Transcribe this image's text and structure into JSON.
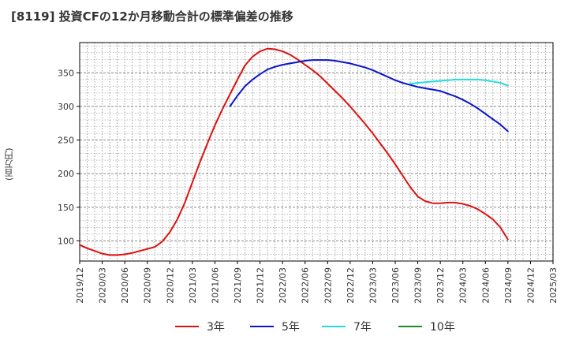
{
  "title": "[8119]  投資CFの12か月移動合計の標準偏差の推移",
  "y_unit_label": "(百万円)",
  "colors": {
    "3年": "#dd1111",
    "5年": "#0a14cc",
    "7年": "#22dddd",
    "10年": "#228822",
    "grid": "#888888",
    "axis": "#000000"
  },
  "chart_data": {
    "type": "line",
    "xlabel": "",
    "ylabel": "(百万円)",
    "ylim": [
      70,
      395
    ],
    "yticks": [
      100,
      150,
      200,
      250,
      300,
      350
    ],
    "x_range": [
      "2019-12",
      "2025-03"
    ],
    "x_ticks": [
      "2019/12",
      "2020/03",
      "2020/06",
      "2020/09",
      "2020/12",
      "2021/03",
      "2021/06",
      "2021/09",
      "2021/12",
      "2022/03",
      "2022/06",
      "2022/09",
      "2022/12",
      "2023/03",
      "2023/06",
      "2023/09",
      "2023/12",
      "2024/03",
      "2024/06",
      "2024/09",
      "2024/12",
      "2025/03"
    ],
    "grid": true,
    "legend_position": "bottom",
    "series": [
      {
        "name": "3年",
        "points": [
          [
            "2019-12",
            94
          ],
          [
            "2020-01",
            89
          ],
          [
            "2020-02",
            85
          ],
          [
            "2020-03",
            81
          ],
          [
            "2020-04",
            79
          ],
          [
            "2020-05",
            79
          ],
          [
            "2020-06",
            80
          ],
          [
            "2020-07",
            82
          ],
          [
            "2020-08",
            85
          ],
          [
            "2020-09",
            88
          ],
          [
            "2020-10",
            91
          ],
          [
            "2020-11",
            99
          ],
          [
            "2020-12",
            113
          ],
          [
            "2021-01",
            132
          ],
          [
            "2021-02",
            157
          ],
          [
            "2021-03",
            187
          ],
          [
            "2021-04",
            217
          ],
          [
            "2021-05",
            245
          ],
          [
            "2021-06",
            272
          ],
          [
            "2021-07",
            296
          ],
          [
            "2021-08",
            318
          ],
          [
            "2021-09",
            340
          ],
          [
            "2021-10",
            361
          ],
          [
            "2021-11",
            374
          ],
          [
            "2021-12",
            382
          ],
          [
            "2022-01",
            386
          ],
          [
            "2022-02",
            385
          ],
          [
            "2022-03",
            382
          ],
          [
            "2022-04",
            377
          ],
          [
            "2022-05",
            370
          ],
          [
            "2022-06",
            362
          ],
          [
            "2022-07",
            354
          ],
          [
            "2022-08",
            345
          ],
          [
            "2022-09",
            334
          ],
          [
            "2022-10",
            323
          ],
          [
            "2022-11",
            312
          ],
          [
            "2022-12",
            300
          ],
          [
            "2023-01",
            287
          ],
          [
            "2023-02",
            274
          ],
          [
            "2023-03",
            260
          ],
          [
            "2023-04",
            245
          ],
          [
            "2023-05",
            230
          ],
          [
            "2023-06",
            214
          ],
          [
            "2023-07",
            197
          ],
          [
            "2023-08",
            180
          ],
          [
            "2023-09",
            166
          ],
          [
            "2023-10",
            159
          ],
          [
            "2023-11",
            156
          ],
          [
            "2023-12",
            156
          ],
          [
            "2024-01",
            157
          ],
          [
            "2024-02",
            157
          ],
          [
            "2024-03",
            155
          ],
          [
            "2024-04",
            152
          ],
          [
            "2024-05",
            147
          ],
          [
            "2024-06",
            140
          ],
          [
            "2024-07",
            132
          ],
          [
            "2024-08",
            120
          ],
          [
            "2024-09",
            102
          ]
        ]
      },
      {
        "name": "5年",
        "points": [
          [
            "2021-08",
            300
          ],
          [
            "2021-09",
            316
          ],
          [
            "2021-10",
            330
          ],
          [
            "2021-11",
            340
          ],
          [
            "2021-12",
            348
          ],
          [
            "2022-01",
            355
          ],
          [
            "2022-02",
            359
          ],
          [
            "2022-03",
            362
          ],
          [
            "2022-04",
            364
          ],
          [
            "2022-05",
            366
          ],
          [
            "2022-06",
            368
          ],
          [
            "2022-07",
            369
          ],
          [
            "2022-08",
            369
          ],
          [
            "2022-09",
            369
          ],
          [
            "2022-10",
            368
          ],
          [
            "2022-11",
            366
          ],
          [
            "2022-12",
            364
          ],
          [
            "2023-01",
            361
          ],
          [
            "2023-02",
            358
          ],
          [
            "2023-03",
            354
          ],
          [
            "2023-04",
            349
          ],
          [
            "2023-05",
            344
          ],
          [
            "2023-06",
            339
          ],
          [
            "2023-07",
            335
          ],
          [
            "2023-08",
            332
          ],
          [
            "2023-09",
            329
          ],
          [
            "2023-10",
            327
          ],
          [
            "2023-11",
            325
          ],
          [
            "2023-12",
            323
          ],
          [
            "2024-01",
            319
          ],
          [
            "2024-02",
            315
          ],
          [
            "2024-03",
            310
          ],
          [
            "2024-04",
            304
          ],
          [
            "2024-05",
            297
          ],
          [
            "2024-06",
            289
          ],
          [
            "2024-07",
            281
          ],
          [
            "2024-08",
            273
          ],
          [
            "2024-09",
            263
          ]
        ]
      },
      {
        "name": "7年",
        "points": [
          [
            "2023-08",
            334
          ],
          [
            "2023-09",
            335
          ],
          [
            "2023-10",
            336
          ],
          [
            "2023-11",
            337
          ],
          [
            "2023-12",
            338
          ],
          [
            "2024-01",
            339
          ],
          [
            "2024-02",
            340
          ],
          [
            "2024-03",
            340
          ],
          [
            "2024-04",
            340
          ],
          [
            "2024-05",
            340
          ],
          [
            "2024-06",
            339
          ],
          [
            "2024-07",
            337
          ],
          [
            "2024-08",
            335
          ],
          [
            "2024-09",
            331
          ]
        ]
      },
      {
        "name": "10年",
        "points": []
      }
    ]
  }
}
